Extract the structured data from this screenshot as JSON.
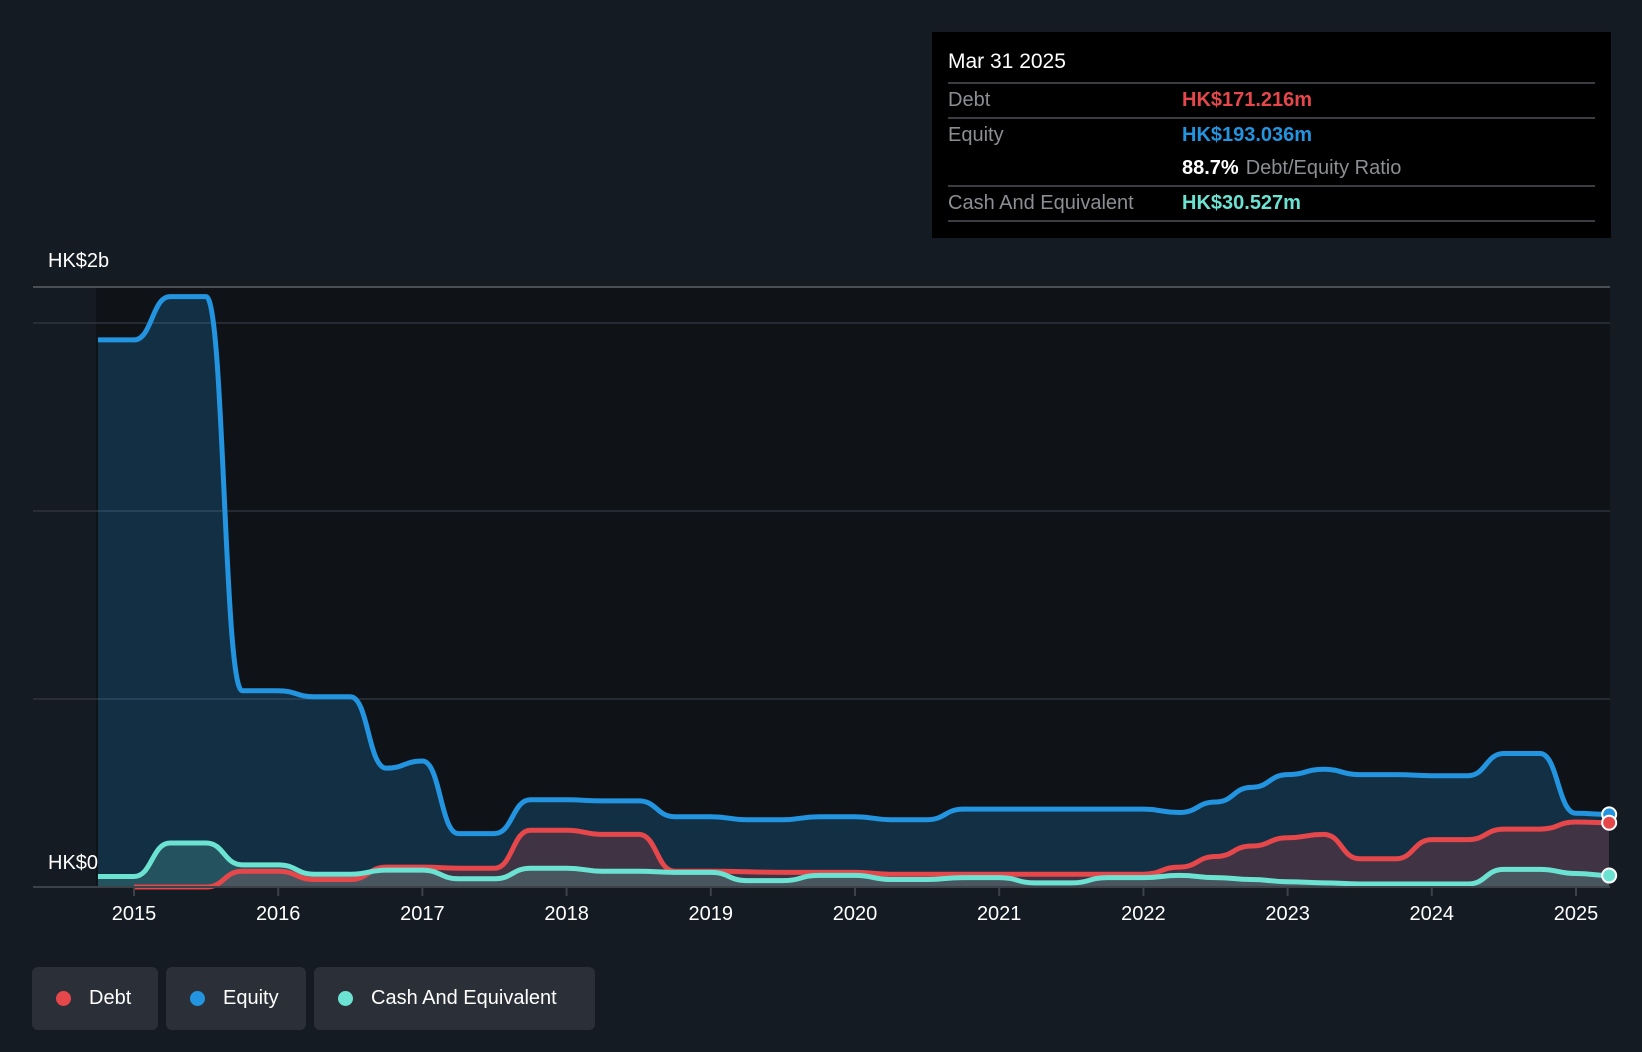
{
  "tooltip": {
    "date": "Mar 31 2025",
    "debt_label": "Debt",
    "debt_value": "HK$171.216m",
    "equity_label": "Equity",
    "equity_value": "HK$193.036m",
    "ratio_value": "88.7%",
    "ratio_label": "Debt/Equity Ratio",
    "cash_label": "Cash And Equivalent",
    "cash_value": "HK$30.527m"
  },
  "legend": [
    {
      "label": "Debt",
      "color": "#e5474b"
    },
    {
      "label": "Equity",
      "color": "#2394df"
    },
    {
      "label": "Cash And Equivalent",
      "color": "#6ce3d2"
    }
  ],
  "chart_data": {
    "type": "area",
    "title": "",
    "ylabel": "",
    "y_tick_labels": [
      "HK$0",
      "HK$2b"
    ],
    "units": "HK$ millions",
    "ylim": [
      0,
      1600
    ],
    "xlim": [
      2014.75,
      2025.25
    ],
    "x_ticks": [
      2015,
      2016,
      2017,
      2018,
      2019,
      2020,
      2021,
      2022,
      2023,
      2024,
      2025
    ],
    "grid": true,
    "legend_position": "bottom-left",
    "series": [
      {
        "name": "Equity",
        "color": "#2394df",
        "x": [
          2014.75,
          2015,
          2015.25,
          2015.5,
          2015.75,
          2016,
          2016.25,
          2016.5,
          2016.75,
          2017,
          2017.25,
          2017.5,
          2017.75,
          2018,
          2018.25,
          2018.5,
          2018.75,
          2019,
          2019.25,
          2019.5,
          2019.75,
          2020,
          2020.25,
          2020.5,
          2020.75,
          2021,
          2021.25,
          2021.5,
          2021.75,
          2022,
          2022.25,
          2022.5,
          2022.75,
          2023,
          2023.25,
          2023.5,
          2023.75,
          2024,
          2024.25,
          2024.5,
          2024.75,
          2025,
          2025.23
        ],
        "values": [
          1455,
          1455,
          1570,
          1570,
          522,
          522,
          506,
          506,
          316,
          335,
          142,
          142,
          232,
          232,
          229,
          229,
          187,
          187,
          179,
          179,
          187,
          187,
          179,
          179,
          207,
          207,
          207,
          207,
          207,
          207,
          198,
          226,
          265,
          299,
          313,
          299,
          299,
          296,
          296,
          355,
          355,
          196,
          193
        ]
      },
      {
        "name": "Debt",
        "color": "#e5474b",
        "x": [
          2015,
          2015.25,
          2015.5,
          2015.75,
          2016,
          2016.25,
          2016.5,
          2016.75,
          2017,
          2017.25,
          2017.5,
          2017.75,
          2018,
          2018.25,
          2018.5,
          2018.75,
          2019,
          2019.5,
          2020,
          2020.25,
          2020.5,
          2021,
          2021.5,
          2022,
          2022.25,
          2022.5,
          2022.75,
          2023,
          2023.25,
          2023.5,
          2023.75,
          2024,
          2024.25,
          2024.5,
          2024.75,
          2025,
          2025.23
        ],
        "values": [
          0,
          0,
          0,
          42,
          42,
          20,
          20,
          53,
          53,
          50,
          50,
          151,
          151,
          140,
          140,
          42,
          42,
          39,
          39,
          34,
          34,
          34,
          34,
          34,
          53,
          81,
          109,
          131,
          140,
          75,
          75,
          126,
          126,
          154,
          154,
          173,
          171
        ]
      },
      {
        "name": "Cash And Equivalent",
        "color": "#6ce3d2",
        "x": [
          2014.75,
          2015,
          2015.25,
          2015.5,
          2015.75,
          2016,
          2016.25,
          2016.5,
          2016.75,
          2017,
          2017.25,
          2017.5,
          2017.75,
          2018,
          2018.25,
          2018.5,
          2018.75,
          2019,
          2019.25,
          2019.5,
          2019.75,
          2020,
          2020.25,
          2020.5,
          2020.75,
          2021,
          2021.25,
          2021.5,
          2021.75,
          2022,
          2022.25,
          2022.5,
          2022.75,
          2023,
          2023.25,
          2023.5,
          2023.75,
          2024,
          2024.25,
          2024.5,
          2024.75,
          2025,
          2025.23
        ],
        "values": [
          28,
          28,
          117,
          117,
          59,
          59,
          34,
          34,
          45,
          45,
          22,
          22,
          50,
          50,
          42,
          42,
          39,
          39,
          17,
          17,
          31,
          31,
          20,
          20,
          25,
          25,
          11,
          11,
          25,
          25,
          31,
          25,
          20,
          14,
          11,
          8,
          8,
          8,
          8,
          47,
          47,
          36,
          30.5
        ]
      }
    ]
  }
}
